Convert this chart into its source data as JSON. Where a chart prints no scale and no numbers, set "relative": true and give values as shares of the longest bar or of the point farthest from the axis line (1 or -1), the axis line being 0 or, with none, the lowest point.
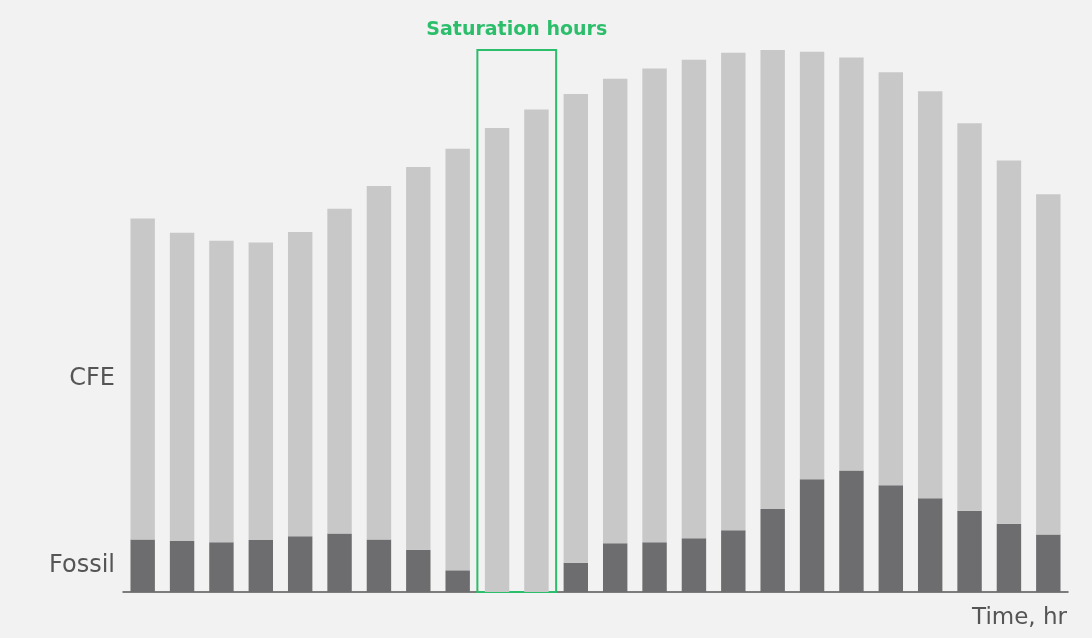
{
  "chart_data": {
    "type": "bar",
    "stacked": true,
    "relative": true,
    "xlabel": "Time, hr",
    "categories": [
      null,
      null,
      null,
      null,
      null,
      null,
      null,
      null,
      null,
      null,
      null,
      null,
      null,
      null,
      null,
      null,
      null,
      null,
      null,
      null,
      null,
      null,
      null,
      null
    ],
    "series": [
      {
        "name": "Fossil",
        "color": "#6d6d70",
        "values": [
          0.097,
          0.094,
          0.092,
          0.096,
          0.103,
          0.108,
          0.097,
          0.078,
          0.04,
          0,
          0,
          0.054,
          0.09,
          0.092,
          0.099,
          0.114,
          0.153,
          0.208,
          0.224,
          0.197,
          0.173,
          0.15,
          0.126,
          0.106
        ]
      },
      {
        "name": "CFE",
        "color": "#c8c8c8",
        "values": [
          0.592,
          0.569,
          0.556,
          0.549,
          0.561,
          0.599,
          0.652,
          0.706,
          0.778,
          0.856,
          0.89,
          0.865,
          0.857,
          0.874,
          0.883,
          0.881,
          0.847,
          0.789,
          0.762,
          0.762,
          0.751,
          0.715,
          0.67,
          0.628
        ]
      }
    ],
    "annotations": [
      "Saturation hours"
    ],
    "grid": false,
    "legend": false
  }
}
